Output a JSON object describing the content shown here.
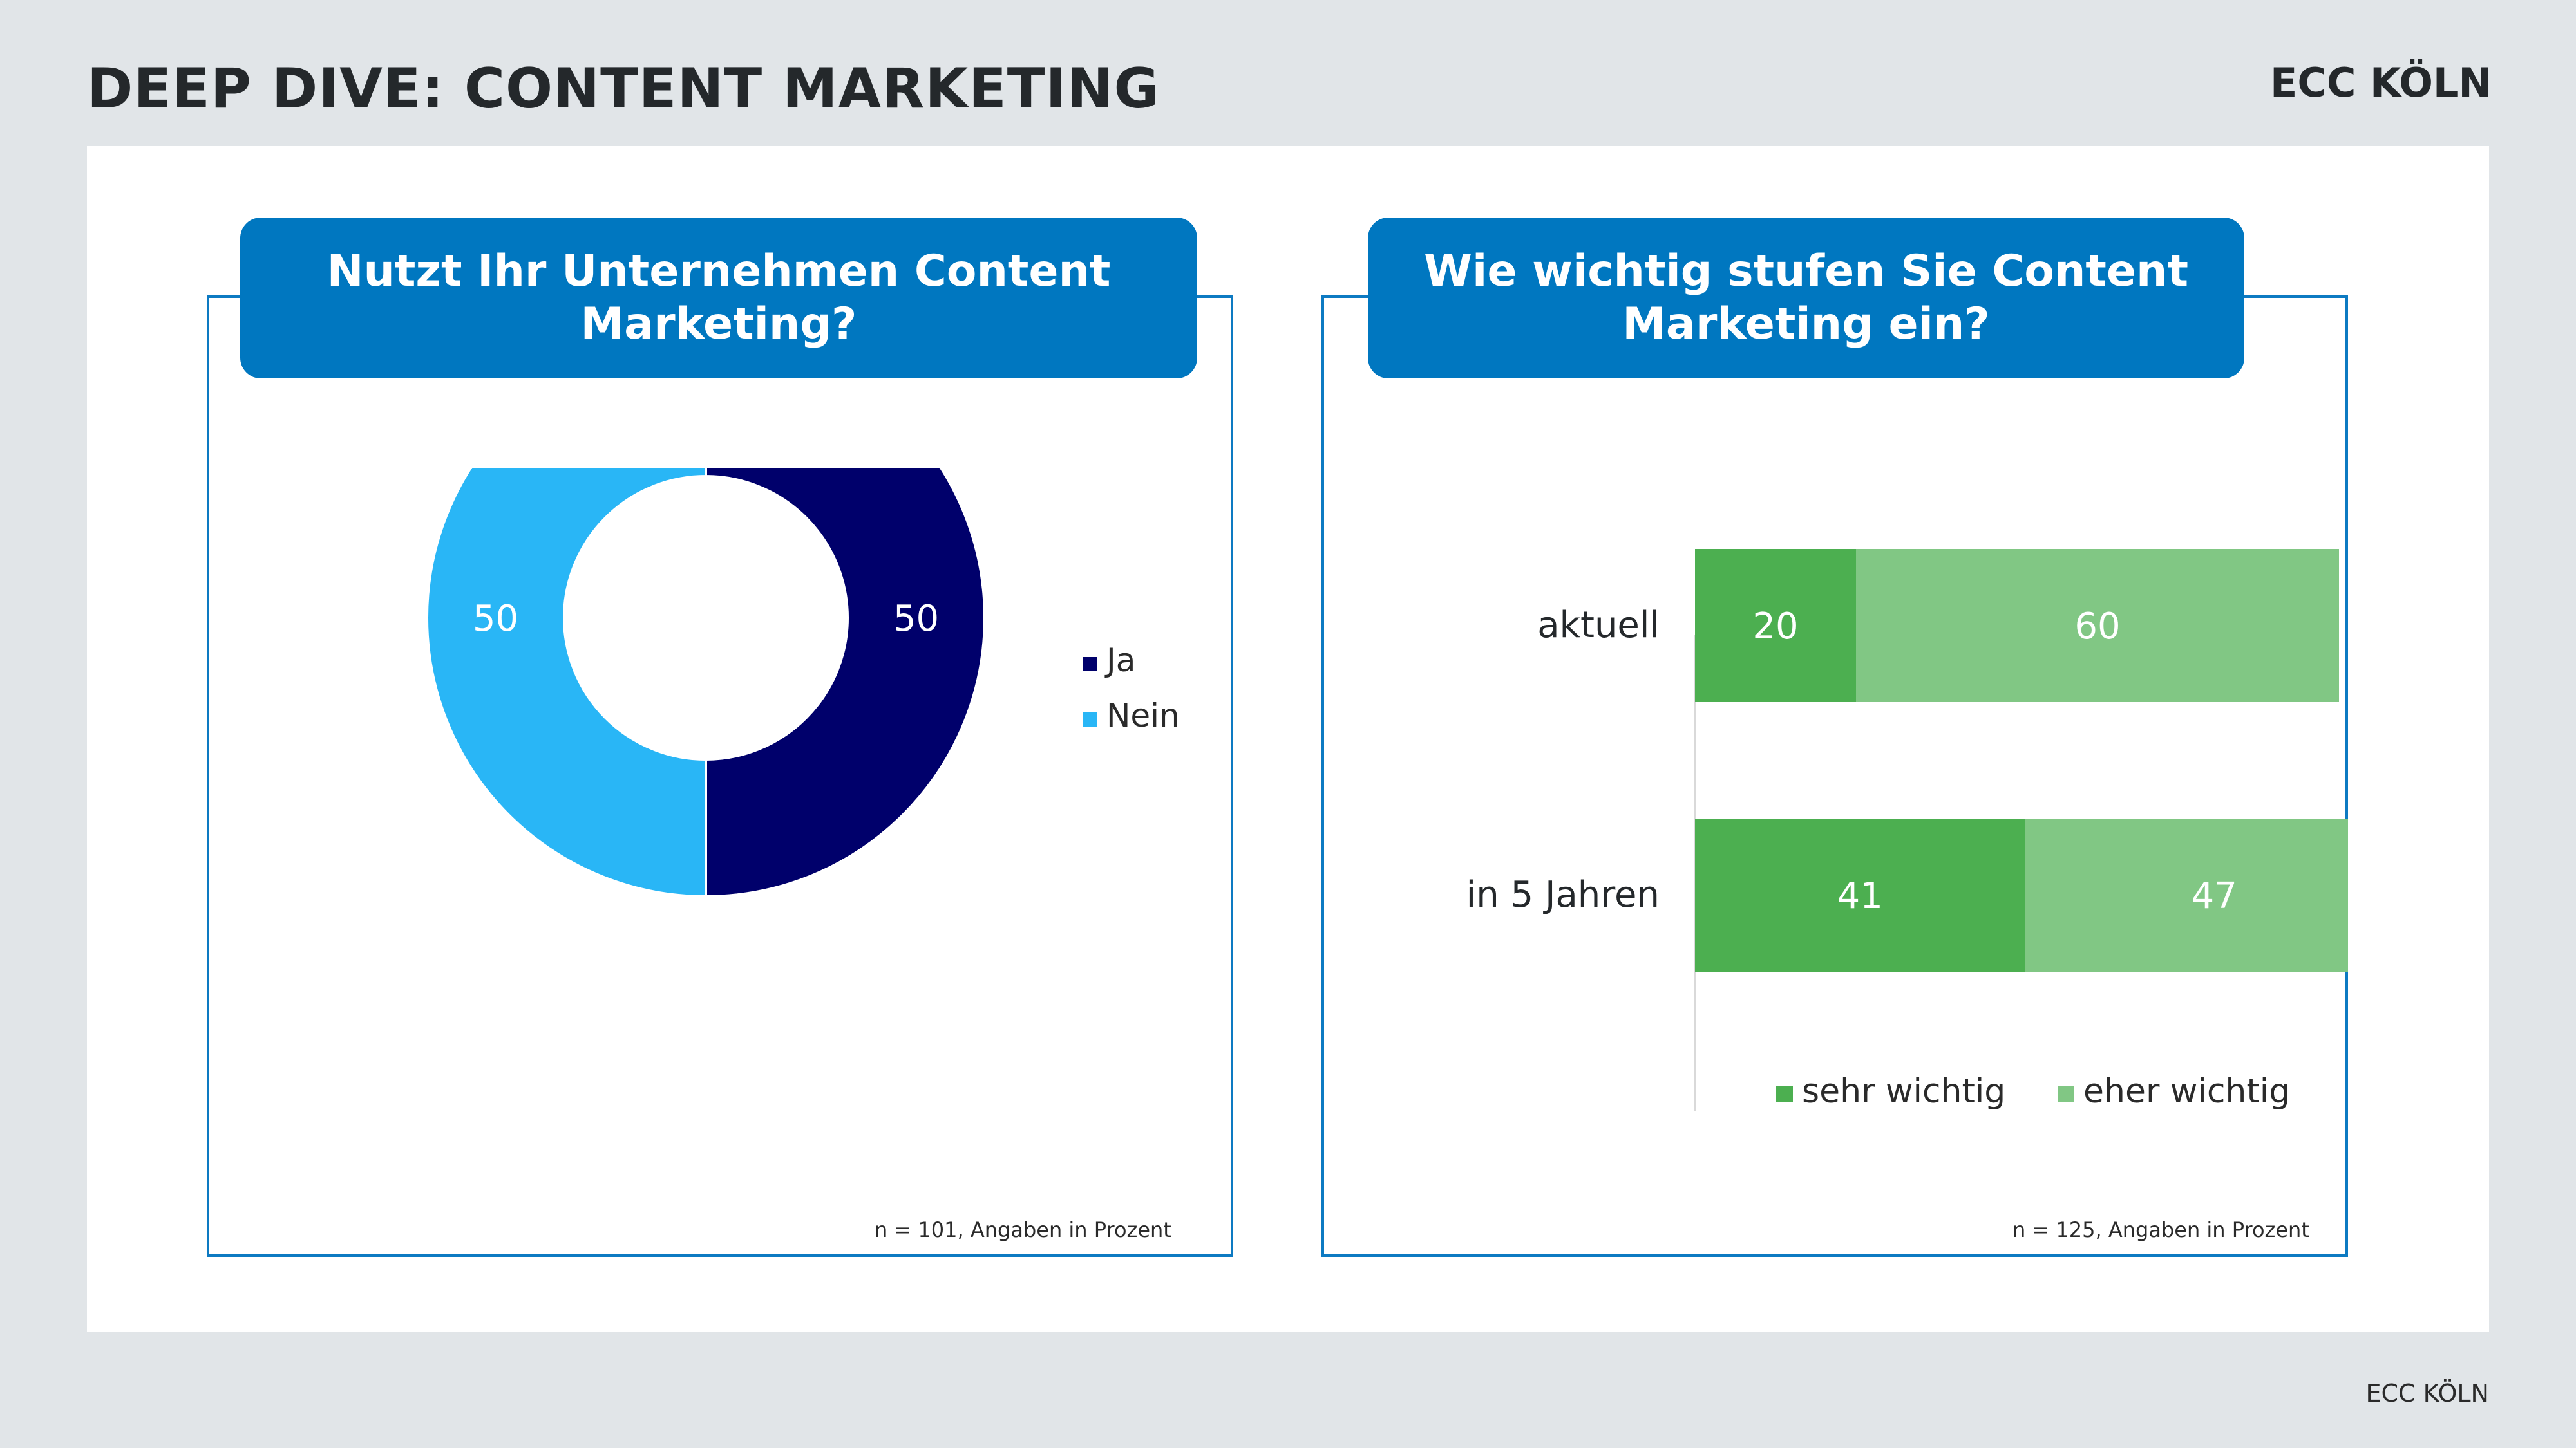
{
  "header": {
    "title": "DEEP DIVE: CONTENT MARKETING",
    "logo_text": "ECC KÖLN"
  },
  "footer": {
    "text": "ECC KÖLN"
  },
  "colors": {
    "background": "#e1e5e8",
    "panel": "#ffffff",
    "accent_blue": "#0077c0",
    "frame_border": "#0d7ac2",
    "ja": "#00006b",
    "nein": "#29b6f6",
    "sehr_wichtig": "#4caf50",
    "eher_wichtig": "#81c784"
  },
  "left_chart": {
    "question": "Nutzt Ihr Unternehmen Content Marketing?",
    "note": "n = 101, Angaben in Prozent"
  },
  "right_chart": {
    "question": "Wie wichtig stufen Sie Content Marketing ein?",
    "note": "n = 125, Angaben in Prozent"
  },
  "chart_data": [
    {
      "type": "pie",
      "variant": "donut",
      "title": "Nutzt Ihr Unternehmen Content Marketing?",
      "categories": [
        "Ja",
        "Nein"
      ],
      "values": [
        50,
        50
      ],
      "colors": [
        "#00006b",
        "#29b6f6"
      ],
      "legend": "right",
      "note": "n = 101, Angaben in Prozent"
    },
    {
      "type": "bar",
      "orientation": "horizontal",
      "stacked": true,
      "title": "Wie wichtig stufen Sie Content Marketing ein?",
      "categories": [
        "aktuell",
        "in 5 Jahren"
      ],
      "series": [
        {
          "name": "sehr wichtig",
          "values": [
            20,
            41
          ],
          "color": "#4caf50"
        },
        {
          "name": "eher wichtig",
          "values": [
            60,
            47
          ],
          "color": "#81c784"
        }
      ],
      "xlim": [
        0,
        88
      ],
      "legend": "bottom",
      "note": "n = 125, Angaben in Prozent"
    }
  ]
}
